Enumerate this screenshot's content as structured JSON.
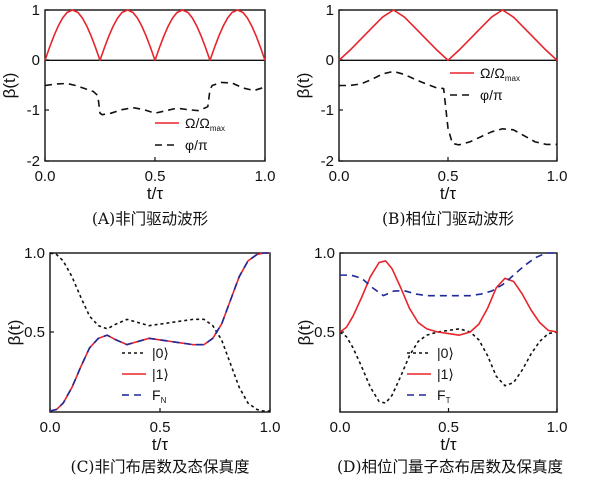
{
  "colors": {
    "red": "#e8242b",
    "black": "#111111",
    "blue": "#1f2a9a"
  },
  "chart_data": [
    {
      "id": "A",
      "type": "line",
      "caption": "(A)非门驱动波形",
      "ylabel": "β(t)",
      "xlabel": "t/τ",
      "xlim": [
        0,
        1
      ],
      "ylim": [
        -2,
        1
      ],
      "xticks": [
        "0.0",
        "0.5",
        "1.0"
      ],
      "yticks": [
        "-2",
        "-1",
        "0",
        "1"
      ],
      "zero_line": true,
      "legend": [
        {
          "label": "Ω/Ω",
          "sub": "max",
          "color": "#e8242b",
          "dash": ""
        },
        {
          "label": "φ/π",
          "sub": "",
          "color": "#111111",
          "dash": "7,5"
        }
      ],
      "series": [
        {
          "name": "Ω/Ω_max",
          "color": "#e8242b",
          "dash": "",
          "x": [
            0,
            0.02,
            0.04,
            0.06,
            0.08,
            0.1,
            0.125,
            0.15,
            0.17,
            0.19,
            0.21,
            0.23,
            0.25,
            0.27,
            0.29,
            0.31,
            0.33,
            0.35,
            0.375,
            0.4,
            0.42,
            0.44,
            0.46,
            0.48,
            0.5,
            0.52,
            0.54,
            0.56,
            0.58,
            0.6,
            0.625,
            0.65,
            0.67,
            0.69,
            0.71,
            0.73,
            0.75,
            0.77,
            0.79,
            0.81,
            0.83,
            0.85,
            0.875,
            0.9,
            0.92,
            0.94,
            0.96,
            0.98,
            1.0
          ],
          "y": [
            0,
            0.25,
            0.48,
            0.68,
            0.84,
            0.95,
            1.0,
            0.95,
            0.84,
            0.68,
            0.48,
            0.25,
            0,
            0.25,
            0.48,
            0.68,
            0.84,
            0.95,
            1.0,
            0.95,
            0.84,
            0.68,
            0.48,
            0.25,
            0,
            0.25,
            0.48,
            0.68,
            0.84,
            0.95,
            1.0,
            0.95,
            0.84,
            0.68,
            0.48,
            0.25,
            0,
            0.25,
            0.48,
            0.68,
            0.84,
            0.95,
            1.0,
            0.95,
            0.84,
            0.68,
            0.48,
            0.25,
            0
          ]
        },
        {
          "name": "φ/π",
          "color": "#111111",
          "dash": "7,5",
          "x": [
            0,
            0.05,
            0.1,
            0.14,
            0.18,
            0.22,
            0.24,
            0.25,
            0.26,
            0.3,
            0.35,
            0.4,
            0.45,
            0.5,
            0.55,
            0.6,
            0.65,
            0.7,
            0.74,
            0.75,
            0.76,
            0.8,
            0.85,
            0.9,
            0.95,
            1.0
          ],
          "y": [
            -0.5,
            -0.47,
            -0.46,
            -0.5,
            -0.56,
            -0.62,
            -0.7,
            -1.05,
            -1.08,
            -1.05,
            -0.98,
            -0.94,
            -0.98,
            -1.05,
            -1.0,
            -0.95,
            -0.98,
            -1.0,
            -0.92,
            -0.58,
            -0.5,
            -0.44,
            -0.45,
            -0.55,
            -0.6,
            -0.53
          ]
        }
      ]
    },
    {
      "id": "B",
      "type": "line",
      "caption": "(B)相位门驱动波形",
      "ylabel": "β(t)",
      "xlabel": "t/τ",
      "xlim": [
        0,
        1
      ],
      "ylim": [
        -2,
        1
      ],
      "xticks": [
        "0.0",
        "0.5",
        "1.0"
      ],
      "yticks": [
        "-2",
        "-1",
        "0",
        "1"
      ],
      "zero_line": true,
      "legend": [
        {
          "label": "Ω/Ω",
          "sub": "max",
          "color": "#e8242b",
          "dash": ""
        },
        {
          "label": "φ/π",
          "sub": "",
          "color": "#111111",
          "dash": "7,5"
        }
      ],
      "series": [
        {
          "name": "Ω/Ω_max",
          "color": "#e8242b",
          "dash": "",
          "x": [
            0,
            0.05,
            0.1,
            0.15,
            0.2,
            0.25,
            0.3,
            0.35,
            0.4,
            0.45,
            0.5,
            0.55,
            0.6,
            0.65,
            0.7,
            0.75,
            0.8,
            0.85,
            0.9,
            0.95,
            1.0
          ],
          "y": [
            0,
            0.2,
            0.42,
            0.64,
            0.86,
            1.0,
            0.86,
            0.64,
            0.42,
            0.2,
            0,
            0.2,
            0.42,
            0.64,
            0.86,
            1.0,
            0.86,
            0.64,
            0.42,
            0.2,
            0
          ]
        },
        {
          "name": "φ/π",
          "color": "#111111",
          "dash": "7,5",
          "x": [
            0,
            0.05,
            0.1,
            0.15,
            0.2,
            0.25,
            0.3,
            0.35,
            0.4,
            0.45,
            0.48,
            0.5,
            0.52,
            0.55,
            0.6,
            0.65,
            0.7,
            0.75,
            0.8,
            0.85,
            0.9,
            0.95,
            1.0
          ],
          "y": [
            -0.5,
            -0.5,
            -0.47,
            -0.38,
            -0.27,
            -0.22,
            -0.28,
            -0.38,
            -0.47,
            -0.55,
            -0.56,
            -1.35,
            -1.65,
            -1.68,
            -1.62,
            -1.52,
            -1.42,
            -1.36,
            -1.38,
            -1.5,
            -1.62,
            -1.67,
            -1.67
          ]
        }
      ]
    },
    {
      "id": "C",
      "type": "line",
      "caption": "(C)非门布居数及态保真度",
      "ylabel": "β(t)",
      "xlabel": "t/τ",
      "xlim": [
        0,
        1
      ],
      "ylim": [
        0,
        1.05
      ],
      "xticks": [
        "0.0",
        "0.5",
        "1.0"
      ],
      "yticks": [
        "0.5",
        "1.0"
      ],
      "zero_line": false,
      "legend": [
        {
          "label": "|0⟩",
          "sub": "",
          "color": "#111111",
          "dash": "3,3"
        },
        {
          "label": "|1⟩",
          "sub": "",
          "color": "#e8242b",
          "dash": ""
        },
        {
          "label": "F",
          "sub": "N",
          "color": "#1f2a9a",
          "dash": "7,5"
        }
      ],
      "series": [
        {
          "name": "|0⟩",
          "color": "#111111",
          "dash": "3,3",
          "x": [
            0,
            0.03,
            0.06,
            0.1,
            0.14,
            0.18,
            0.22,
            0.26,
            0.3,
            0.35,
            0.4,
            0.45,
            0.5,
            0.55,
            0.6,
            0.65,
            0.7,
            0.74,
            0.78,
            0.82,
            0.86,
            0.9,
            0.94,
            0.97,
            1.0
          ],
          "y": [
            1.0,
            0.99,
            0.95,
            0.85,
            0.72,
            0.6,
            0.54,
            0.52,
            0.55,
            0.58,
            0.56,
            0.54,
            0.55,
            0.56,
            0.57,
            0.58,
            0.58,
            0.54,
            0.45,
            0.3,
            0.15,
            0.05,
            0.01,
            0.0,
            0.0
          ]
        },
        {
          "name": "|1⟩",
          "color": "#e8242b",
          "dash": "",
          "x": [
            0,
            0.03,
            0.06,
            0.1,
            0.14,
            0.18,
            0.22,
            0.26,
            0.3,
            0.35,
            0.4,
            0.45,
            0.5,
            0.55,
            0.6,
            0.65,
            0.7,
            0.74,
            0.78,
            0.82,
            0.86,
            0.9,
            0.94,
            0.97,
            1.0
          ],
          "y": [
            0.0,
            0.01,
            0.05,
            0.15,
            0.28,
            0.4,
            0.46,
            0.48,
            0.45,
            0.42,
            0.44,
            0.46,
            0.45,
            0.44,
            0.43,
            0.42,
            0.42,
            0.46,
            0.55,
            0.7,
            0.85,
            0.95,
            0.99,
            1.0,
            1.0
          ]
        },
        {
          "name": "F_N",
          "color": "#1f2a9a",
          "dash": "7,5",
          "x": [
            0,
            0.03,
            0.06,
            0.1,
            0.14,
            0.18,
            0.22,
            0.26,
            0.3,
            0.35,
            0.4,
            0.45,
            0.5,
            0.55,
            0.6,
            0.65,
            0.7,
            0.74,
            0.78,
            0.82,
            0.86,
            0.9,
            0.94,
            0.97,
            1.0
          ],
          "y": [
            0.0,
            0.01,
            0.05,
            0.15,
            0.28,
            0.4,
            0.46,
            0.48,
            0.45,
            0.42,
            0.44,
            0.46,
            0.45,
            0.44,
            0.43,
            0.42,
            0.42,
            0.46,
            0.55,
            0.7,
            0.85,
            0.95,
            0.99,
            1.0,
            1.0
          ]
        }
      ]
    },
    {
      "id": "D",
      "type": "line",
      "caption": "(D)相位门量子态布居数及保真度",
      "ylabel": "β(t)",
      "xlabel": "t/τ",
      "xlim": [
        0,
        1
      ],
      "ylim": [
        0,
        1.05
      ],
      "xticks": [
        "0.0",
        "0.5",
        "1.0"
      ],
      "yticks": [
        "0.5",
        "1.0"
      ],
      "zero_line": false,
      "legend": [
        {
          "label": "|0⟩",
          "sub": "",
          "color": "#111111",
          "dash": "3,3"
        },
        {
          "label": "|1⟩",
          "sub": "",
          "color": "#e8242b",
          "dash": ""
        },
        {
          "label": "F",
          "sub": "T",
          "color": "#1f2a9a",
          "dash": "7,5"
        }
      ],
      "series": [
        {
          "name": "|0⟩",
          "color": "#111111",
          "dash": "3,3",
          "x": [
            0,
            0.03,
            0.06,
            0.1,
            0.14,
            0.18,
            0.21,
            0.24,
            0.28,
            0.32,
            0.36,
            0.4,
            0.45,
            0.5,
            0.55,
            0.6,
            0.64,
            0.68,
            0.72,
            0.76,
            0.8,
            0.84,
            0.88,
            0.92,
            0.96,
            1.0
          ],
          "y": [
            0.5,
            0.47,
            0.4,
            0.28,
            0.15,
            0.06,
            0.05,
            0.1,
            0.22,
            0.35,
            0.44,
            0.48,
            0.5,
            0.51,
            0.52,
            0.5,
            0.45,
            0.35,
            0.22,
            0.16,
            0.18,
            0.26,
            0.36,
            0.44,
            0.49,
            0.5
          ]
        },
        {
          "name": "|1⟩",
          "color": "#e8242b",
          "dash": "",
          "x": [
            0,
            0.03,
            0.06,
            0.1,
            0.14,
            0.18,
            0.21,
            0.24,
            0.28,
            0.32,
            0.36,
            0.4,
            0.45,
            0.5,
            0.55,
            0.6,
            0.64,
            0.68,
            0.72,
            0.76,
            0.8,
            0.84,
            0.88,
            0.92,
            0.96,
            1.0
          ],
          "y": [
            0.5,
            0.53,
            0.6,
            0.72,
            0.85,
            0.94,
            0.95,
            0.9,
            0.78,
            0.65,
            0.56,
            0.52,
            0.5,
            0.49,
            0.48,
            0.5,
            0.55,
            0.65,
            0.78,
            0.84,
            0.82,
            0.74,
            0.64,
            0.56,
            0.51,
            0.5
          ]
        },
        {
          "name": "F_T",
          "color": "#1f2a9a",
          "dash": "7,5",
          "x": [
            0,
            0.05,
            0.1,
            0.15,
            0.2,
            0.25,
            0.3,
            0.35,
            0.4,
            0.45,
            0.5,
            0.55,
            0.6,
            0.65,
            0.7,
            0.75,
            0.8,
            0.85,
            0.9,
            0.95,
            1.0
          ],
          "y": [
            0.86,
            0.86,
            0.84,
            0.78,
            0.73,
            0.76,
            0.76,
            0.74,
            0.73,
            0.73,
            0.73,
            0.73,
            0.73,
            0.74,
            0.76,
            0.8,
            0.86,
            0.92,
            0.97,
            1.0,
            1.0
          ]
        }
      ]
    }
  ]
}
